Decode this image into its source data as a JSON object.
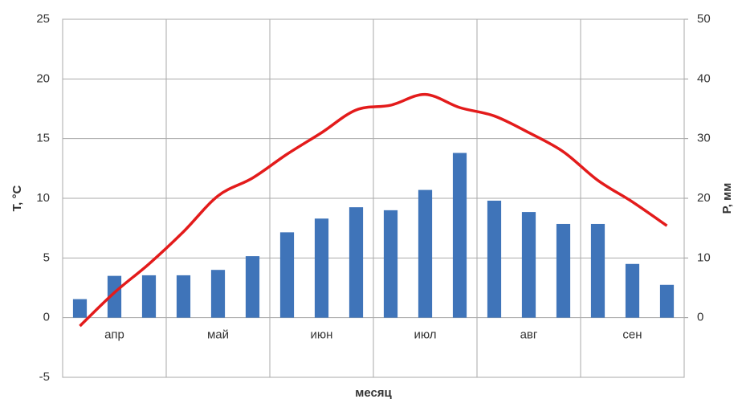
{
  "chart_data": {
    "type": "combo",
    "y_label": "T, °C",
    "y2_label": "P, мм",
    "x_label": "месяц",
    "categories": [
      null,
      "апр",
      null,
      null,
      "май",
      null,
      null,
      "июн",
      null,
      null,
      "июл",
      null,
      null,
      "авг",
      null,
      null,
      "сен",
      null
    ],
    "ylim": [
      -5,
      25
    ],
    "yticks": [
      -5,
      0,
      5,
      10,
      15,
      20,
      25
    ],
    "y2lim": [
      -10,
      50
    ],
    "y2ticks": [
      0,
      10,
      20,
      30,
      40,
      50
    ],
    "grid": true,
    "series": [
      {
        "type": "bar",
        "axis": "y2",
        "color": "#3f74b9",
        "values": [
          3.1,
          7.0,
          7.1,
          7.1,
          8.0,
          10.3,
          14.3,
          16.6,
          18.5,
          18.0,
          21.4,
          27.6,
          19.6,
          17.7,
          15.7,
          15.7,
          9.0,
          5.5
        ]
      },
      {
        "type": "line",
        "color": "#e31b1b",
        "values": [
          -0.7,
          2.1,
          4.5,
          7.2,
          10.2,
          11.7,
          13.7,
          15.5,
          17.4,
          17.8,
          18.7,
          17.6,
          16.9,
          15.5,
          13.9,
          11.5,
          9.7,
          7.7
        ]
      }
    ]
  }
}
